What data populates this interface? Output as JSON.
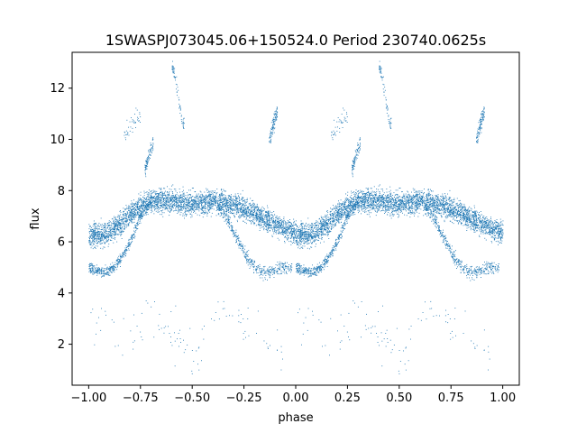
{
  "chart_data": {
    "type": "scatter",
    "title": "1SWASPJ073045.06+150524.0 Period 230740.0625s",
    "xlabel": "phase",
    "ylabel": "flux",
    "xlim": [
      -1.08,
      1.08
    ],
    "ylim": [
      0.4,
      13.4
    ],
    "x_ticks": [
      -1.0,
      -0.75,
      -0.5,
      -0.25,
      0.0,
      0.25,
      0.5,
      0.75,
      1.0
    ],
    "x_tick_labels": [
      "−1.00",
      "−0.75",
      "−0.50",
      "−0.25",
      "0.00",
      "0.25",
      "0.50",
      "0.75",
      "1.00"
    ],
    "y_ticks": [
      2,
      4,
      6,
      8,
      10,
      12
    ],
    "y_tick_labels": [
      "2",
      "4",
      "6",
      "8",
      "10",
      "12"
    ],
    "grid": false,
    "point_color": "#1f77b4",
    "series": [
      {
        "segments": [
          {
            "x": [
              0.0,
              0.05,
              0.1,
              0.15,
              0.2,
              0.25,
              0.3,
              0.35,
              0.4,
              0.45,
              0.5,
              0.55,
              0.6,
              0.65,
              0.7,
              0.75,
              0.8,
              0.85,
              0.9,
              0.95,
              1.0
            ],
            "y": [
              6.3,
              6.25,
              6.4,
              6.7,
              7.1,
              7.4,
              7.6,
              7.65,
              7.6,
              7.55,
              7.5,
              7.55,
              7.6,
              7.55,
              7.45,
              7.3,
              7.1,
              6.9,
              6.7,
              6.5,
              6.35
            ],
            "spread": 0.45,
            "count": 3600
          },
          {
            "x": [
              0.0,
              0.03,
              0.06,
              0.09,
              0.12,
              0.15,
              0.18,
              0.21,
              0.24,
              0.27,
              0.3
            ],
            "y": [
              5.0,
              4.9,
              4.85,
              4.9,
              5.0,
              5.3,
              5.7,
              6.2,
              6.8,
              7.3,
              7.6
            ],
            "spread": 0.2,
            "count": 500
          },
          {
            "x": [
              0.62,
              0.66,
              0.7,
              0.74,
              0.78,
              0.82,
              0.86,
              0.9,
              0.94,
              0.98
            ],
            "y": [
              7.4,
              7.0,
              6.4,
              5.8,
              5.2,
              4.9,
              4.8,
              4.9,
              5.0,
              5.0
            ],
            "spread": 0.25,
            "count": 450
          },
          {
            "x": [
              0.4,
              0.42,
              0.44,
              0.46
            ],
            "y": [
              13.0,
              12.2,
              11.3,
              10.5
            ],
            "spread": 0.35,
            "count": 70
          },
          {
            "x": [
              0.27,
              0.29,
              0.31
            ],
            "y": [
              8.8,
              9.4,
              9.9
            ],
            "spread": 0.3,
            "count": 90
          },
          {
            "x": [
              0.87,
              0.89,
              0.91
            ],
            "y": [
              10.0,
              10.6,
              11.2
            ],
            "spread": 0.3,
            "count": 110
          },
          {
            "x": [
              0.17,
              0.2,
              0.25
            ],
            "y": [
              10.2,
              10.6,
              11.0
            ],
            "spread": 0.4,
            "count": 40
          },
          {
            "x": [
              0.0,
              0.15,
              0.35,
              0.5,
              0.65,
              0.8,
              0.95
            ],
            "y": [
              3.2,
              2.2,
              3.0,
              1.5,
              3.4,
              2.6,
              1.8
            ],
            "spread": 1.0,
            "count": 110
          }
        ]
      }
    ]
  }
}
